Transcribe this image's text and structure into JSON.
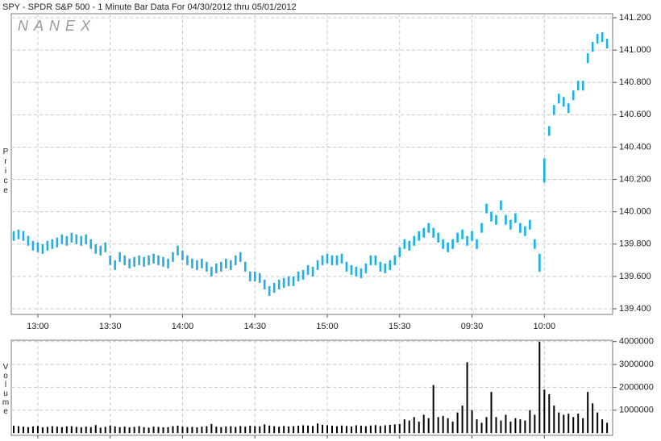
{
  "chart_data": [
    {
      "type": "range",
      "title": "SPY - SPDR S&P 500 - 1 Minute Bar Data For 04/30/2012  thru  05/01/2012",
      "watermark": "NANEX",
      "ylabel": "Price",
      "color": "#1ab0e8",
      "grid": true,
      "x": [
        0,
        2,
        4,
        6,
        8,
        10,
        12,
        14,
        16,
        18,
        20,
        22,
        24,
        26,
        28,
        30,
        32,
        34,
        36,
        38,
        40,
        42,
        44,
        46,
        48,
        50,
        52,
        54,
        56,
        58,
        60,
        62,
        64,
        66,
        68,
        70,
        72,
        74,
        76,
        78,
        80,
        82,
        84,
        86,
        88,
        90,
        92,
        94,
        96,
        98,
        100,
        102,
        104,
        106,
        108,
        110,
        112,
        114,
        116,
        118,
        120,
        122,
        124,
        126,
        128,
        130,
        132,
        134,
        136,
        138,
        140,
        142,
        144,
        146,
        148,
        150,
        152,
        154,
        156,
        158,
        160,
        162,
        164,
        166,
        168,
        170,
        172,
        174,
        176,
        178,
        180,
        182,
        184,
        186,
        188,
        190,
        192,
        194,
        196,
        198,
        200,
        202,
        204,
        206,
        208,
        210,
        212,
        214,
        216,
        218,
        220,
        222,
        224,
        226,
        228,
        230,
        232,
        234,
        236,
        238,
        240,
        242,
        244,
        246
      ],
      "high": [
        139.88,
        139.89,
        139.88,
        139.85,
        139.82,
        139.81,
        139.8,
        139.82,
        139.83,
        139.84,
        139.86,
        139.85,
        139.87,
        139.86,
        139.85,
        139.86,
        139.83,
        139.8,
        139.79,
        139.81,
        139.73,
        139.7,
        139.75,
        139.73,
        139.71,
        139.72,
        139.73,
        139.72,
        139.73,
        139.74,
        139.73,
        139.72,
        139.71,
        139.75,
        139.79,
        139.76,
        139.73,
        139.71,
        139.7,
        139.71,
        139.69,
        139.66,
        139.68,
        139.69,
        139.71,
        139.7,
        139.73,
        139.75,
        139.69,
        139.63,
        139.63,
        139.62,
        139.58,
        139.54,
        139.56,
        139.58,
        139.59,
        139.6,
        139.6,
        139.63,
        139.64,
        139.67,
        139.66,
        139.7,
        139.73,
        139.74,
        139.73,
        139.73,
        139.74,
        139.69,
        139.67,
        139.66,
        139.65,
        139.68,
        139.73,
        139.73,
        139.69,
        139.68,
        139.7,
        139.73,
        139.78,
        139.83,
        139.82,
        139.85,
        139.88,
        139.9,
        139.93,
        139.9,
        139.87,
        139.83,
        139.81,
        139.83,
        139.87,
        139.89,
        139.85,
        139.88,
        139.83,
        139.93,
        140.05,
        140.0,
        139.98,
        140.07,
        139.98,
        139.95,
        139.99,
        139.93,
        139.91,
        139.95,
        139.83,
        139.74,
        140.33,
        140.53,
        140.66,
        140.73,
        140.71,
        140.67,
        140.75,
        140.81,
        140.81,
        140.98,
        141.05,
        141.1,
        141.11,
        141.07
      ],
      "low": [
        139.82,
        139.83,
        139.82,
        139.79,
        139.76,
        139.75,
        139.74,
        139.76,
        139.77,
        139.78,
        139.8,
        139.79,
        139.81,
        139.8,
        139.79,
        139.8,
        139.77,
        139.74,
        139.73,
        139.75,
        139.67,
        139.64,
        139.69,
        139.67,
        139.65,
        139.66,
        139.67,
        139.66,
        139.67,
        139.68,
        139.67,
        139.66,
        139.65,
        139.69,
        139.73,
        139.7,
        139.67,
        139.65,
        139.64,
        139.65,
        139.63,
        139.6,
        139.62,
        139.63,
        139.65,
        139.64,
        139.67,
        139.69,
        139.63,
        139.57,
        139.57,
        139.56,
        139.52,
        139.48,
        139.5,
        139.52,
        139.53,
        139.54,
        139.54,
        139.57,
        139.58,
        139.61,
        139.6,
        139.64,
        139.67,
        139.68,
        139.67,
        139.67,
        139.68,
        139.63,
        139.61,
        139.6,
        139.59,
        139.62,
        139.67,
        139.67,
        139.63,
        139.62,
        139.64,
        139.67,
        139.72,
        139.77,
        139.76,
        139.79,
        139.82,
        139.84,
        139.87,
        139.84,
        139.81,
        139.77,
        139.75,
        139.77,
        139.81,
        139.83,
        139.79,
        139.82,
        139.77,
        139.87,
        139.99,
        139.94,
        139.92,
        140.01,
        139.92,
        139.89,
        139.93,
        139.87,
        139.85,
        139.89,
        139.77,
        139.63,
        140.18,
        140.47,
        140.6,
        140.67,
        140.65,
        140.61,
        140.69,
        140.75,
        140.75,
        140.92,
        140.99,
        141.04,
        141.05,
        141.01
      ],
      "xlim": [
        -1,
        248.3
      ],
      "xticks": [
        {
          "value": 10,
          "label": "13:00"
        },
        {
          "value": 40,
          "label": "13:30"
        },
        {
          "value": 70,
          "label": "14:00"
        },
        {
          "value": 100,
          "label": "14:30"
        },
        {
          "value": 130,
          "label": "15:00"
        },
        {
          "value": 160,
          "label": "15:30"
        },
        {
          "value": 190,
          "label": "09:30"
        },
        {
          "value": 220,
          "label": "10:00"
        }
      ],
      "ylim": [
        139.365,
        141.225
      ],
      "yticks": [
        {
          "value": 139.4,
          "label": "139.400"
        },
        {
          "value": 139.6,
          "label": "139.600"
        },
        {
          "value": 139.8,
          "label": "139.800"
        },
        {
          "value": 140.0,
          "label": "140.000"
        },
        {
          "value": 140.2,
          "label": "140.200"
        },
        {
          "value": 140.4,
          "label": "140.400"
        },
        {
          "value": 140.6,
          "label": "140.600"
        },
        {
          "value": 140.8,
          "label": "140.800"
        },
        {
          "value": 141.0,
          "label": "141.000"
        },
        {
          "value": 141.2,
          "label": "141.200"
        }
      ]
    },
    {
      "type": "bar",
      "ylabel": "Volume",
      "color": "#000000",
      "grid": true,
      "values": [
        320000,
        300000,
        280000,
        260000,
        290000,
        310000,
        250000,
        270000,
        300000,
        280000,
        260000,
        290000,
        300000,
        270000,
        250000,
        280000,
        260000,
        350000,
        240000,
        270000,
        330000,
        290000,
        260000,
        280000,
        250000,
        270000,
        300000,
        260000,
        240000,
        280000,
        270000,
        250000,
        260000,
        300000,
        320000,
        280000,
        260000,
        270000,
        250000,
        280000,
        300000,
        400000,
        280000,
        260000,
        290000,
        300000,
        270000,
        310000,
        280000,
        320000,
        300000,
        290000,
        380000,
        330000,
        300000,
        280000,
        310000,
        290000,
        300000,
        320000,
        340000,
        330000,
        310000,
        420000,
        360000,
        340000,
        320000,
        300000,
        330000,
        310000,
        290000,
        340000,
        320000,
        300000,
        330000,
        350000,
        310000,
        340000,
        360000,
        380000,
        400000,
        600000,
        550000,
        700000,
        500000,
        800000,
        650000,
        2100000,
        700000,
        750000,
        650000,
        500000,
        900000,
        1200000,
        3100000,
        1000000,
        600000,
        450000,
        700000,
        1800000,
        700000,
        550000,
        800000,
        500000,
        650000,
        600000,
        550000,
        1000000,
        800000,
        4000000,
        1900000,
        1700000,
        1200000,
        900000,
        800000,
        850000,
        700000,
        850000,
        650000,
        1800000,
        1300000,
        900000,
        600000,
        450000
      ],
      "ylim": [
        -100000,
        4060000
      ],
      "yticks": [
        1000000,
        2000000,
        3000000,
        4000000
      ]
    }
  ]
}
